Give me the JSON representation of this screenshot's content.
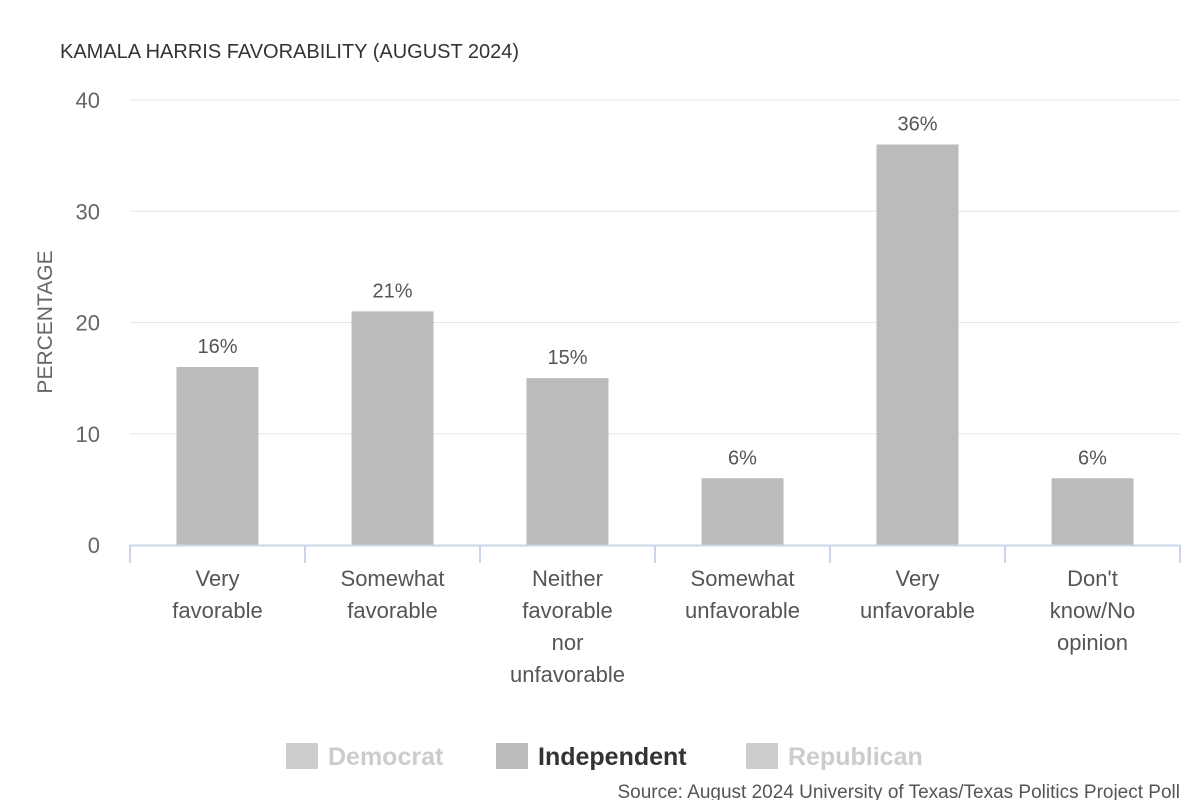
{
  "chart_data": {
    "type": "bar",
    "title": "KAMALA HARRIS FAVORABILITY (AUGUST 2024)",
    "ylabel": "PERCENTAGE",
    "xlabel": "",
    "ylim": [
      0,
      40
    ],
    "yticks": [
      "0",
      "10",
      "20",
      "30",
      "40"
    ],
    "grid": true,
    "categories": [
      [
        "Very",
        "favorable"
      ],
      [
        "Somewhat",
        "favorable"
      ],
      [
        "Neither",
        "favorable",
        "nor",
        "unfavorable"
      ],
      [
        "Somewhat",
        "unfavorable"
      ],
      [
        "Very",
        "unfavorable"
      ],
      [
        "Don't",
        "know/No",
        "opinion"
      ]
    ],
    "series": [
      {
        "name": "Independent",
        "values": [
          16,
          21,
          15,
          6,
          36,
          6
        ],
        "data_labels": [
          "16%",
          "21%",
          "15%",
          "6%",
          "36%",
          "6%"
        ],
        "color": "#bbbbbb"
      }
    ],
    "legend": {
      "placement": "bottom",
      "items": [
        {
          "name": "Democrat",
          "active": false,
          "swatch_color": "#cccccc",
          "text_color": "#cccccc"
        },
        {
          "name": "Independent",
          "active": true,
          "swatch_color": "#bbbbbb",
          "text_color": "#333333"
        },
        {
          "name": "Republican",
          "active": false,
          "swatch_color": "#cccccc",
          "text_color": "#cccccc"
        }
      ]
    },
    "source": "Source: August 2024 University of Texas/Texas Politics Project Poll"
  }
}
